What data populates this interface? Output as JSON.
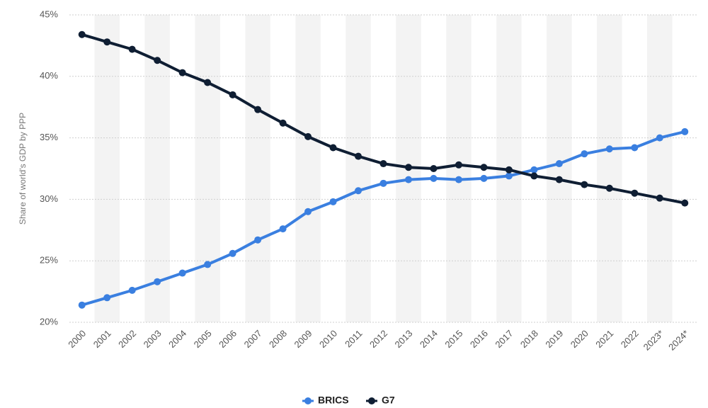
{
  "chart_data": {
    "type": "line",
    "y_label": "Share of world's GDP by PPP",
    "categories": [
      "2000",
      "2001",
      "2002",
      "2003",
      "2004",
      "2005",
      "2006",
      "2007",
      "2008",
      "2009",
      "2010",
      "2011",
      "2012",
      "2013",
      "2014",
      "2015",
      "2016",
      "2017",
      "2018",
      "2019",
      "2020",
      "2021",
      "2022",
      "2023*",
      "2024*"
    ],
    "series": [
      {
        "name": "BRICS",
        "color": "#3a7fe0",
        "values": [
          21.4,
          22.0,
          22.6,
          23.3,
          24.0,
          24.7,
          25.6,
          26.7,
          27.6,
          29.0,
          29.8,
          30.7,
          31.3,
          31.6,
          31.7,
          31.6,
          31.7,
          31.9,
          32.4,
          32.9,
          33.7,
          34.1,
          34.2,
          35.0,
          35.5
        ]
      },
      {
        "name": "G7",
        "color": "#0f1e33",
        "values": [
          43.4,
          42.8,
          42.2,
          41.3,
          40.3,
          39.5,
          38.5,
          37.3,
          36.2,
          35.1,
          34.2,
          33.5,
          32.9,
          32.6,
          32.5,
          32.8,
          32.6,
          32.4,
          31.9,
          31.6,
          31.2,
          30.9,
          30.5,
          30.1,
          29.7
        ]
      }
    ],
    "ylim": [
      20,
      45
    ],
    "yticks": [
      {
        "value": 20,
        "label": "20%"
      },
      {
        "value": 25,
        "label": "25%"
      },
      {
        "value": 30,
        "label": "30%"
      },
      {
        "value": 35,
        "label": "35%"
      },
      {
        "value": 40,
        "label": "40%"
      },
      {
        "value": 45,
        "label": "45%"
      }
    ],
    "grid": true,
    "legend": "bottom"
  }
}
